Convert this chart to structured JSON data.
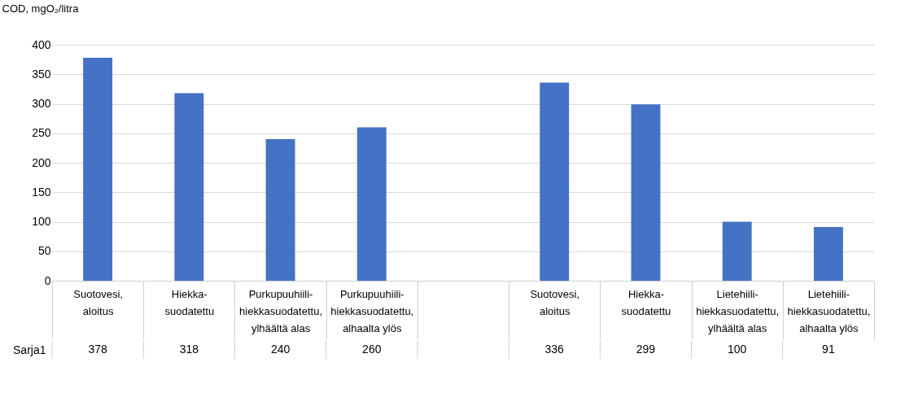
{
  "chart_data": {
    "type": "bar",
    "ylabel": "COD, mgO₂/litra",
    "categories": [
      "Suotovesi,\naloitus",
      "Hiekka-\nsuodatettu",
      "Purkupuuhiili-\nhiekkasuodatettu,\nylhäältä alas",
      "Purkupuuhiili-\nhiekkasuodatettu,\nalhaalta ylös",
      null,
      "Suotovesi,\naloitus",
      "Hiekka-\nsuodatettu",
      "Lietehiili-\nhiekkasuodatettu,\nylhäältä alas",
      "Lietehiili-\nhiekkasuodatettu,\nalhaalta ylös"
    ],
    "series": [
      {
        "name": "Sarja1",
        "color": "#4472c4",
        "values": [
          378,
          318,
          240,
          260,
          null,
          336,
          299,
          100,
          91
        ]
      }
    ],
    "ylim": [
      0,
      400
    ],
    "yticks": [
      0,
      50,
      100,
      150,
      200,
      250,
      300,
      350,
      400
    ],
    "grid": "y",
    "data_labels": true,
    "legend": false
  }
}
